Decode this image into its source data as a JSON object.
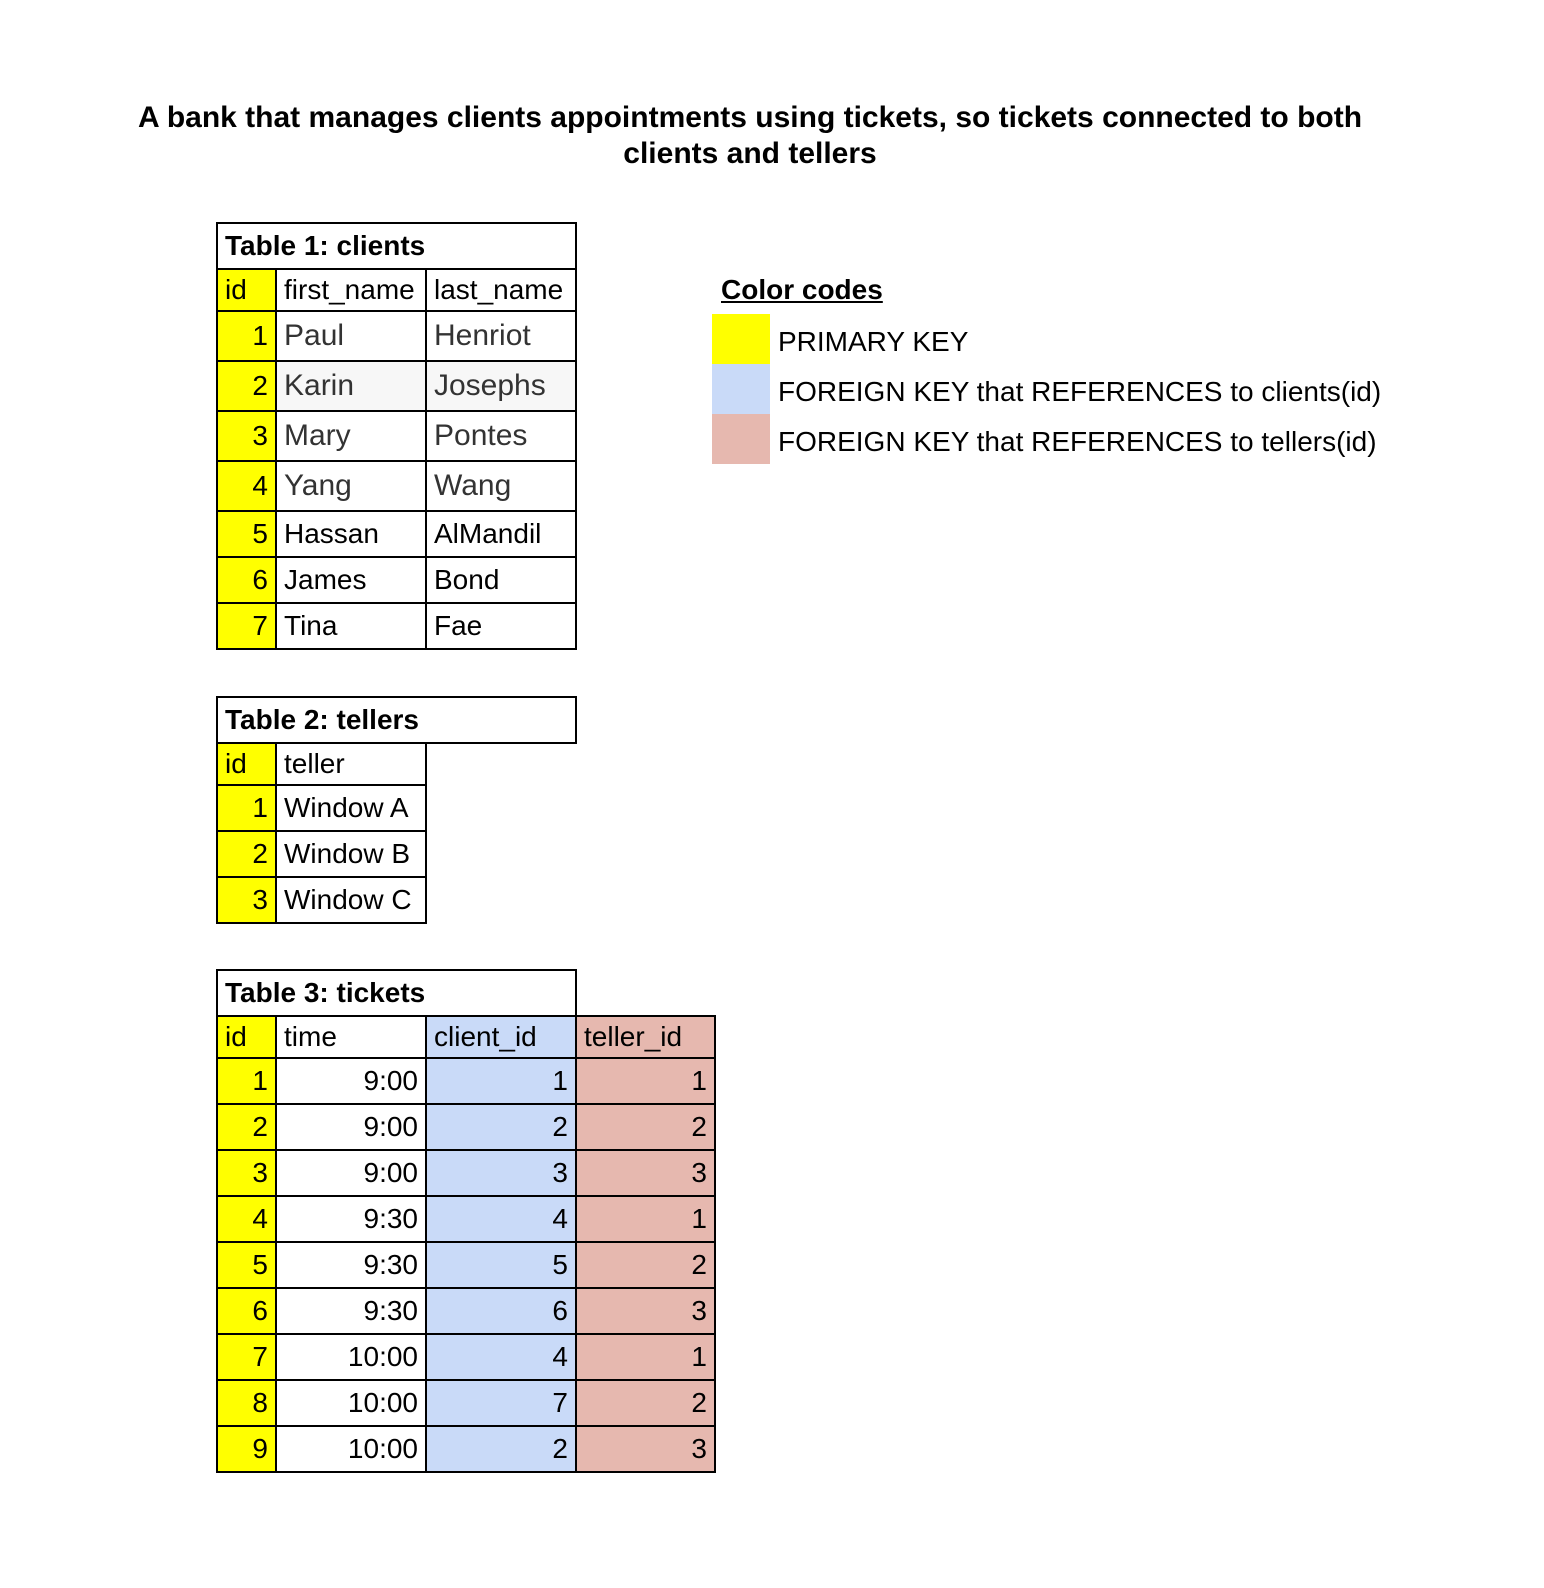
{
  "title": {
    "line1": "A bank that manages clients appointments using tickets, so tickets connected to both",
    "line2": "clients and tellers"
  },
  "colors": {
    "primary_key": "#ffff00",
    "fk_clients": "#c9daf8",
    "fk_tellers": "#e6b8af"
  },
  "clients": {
    "caption": "Table 1: clients",
    "headers": [
      "id",
      "first_name",
      "last_name"
    ],
    "rows": [
      {
        "id": "1",
        "first_name": "Paul",
        "last_name": "Henriot"
      },
      {
        "id": "2",
        "first_name": "Karin",
        "last_name": "Josephs"
      },
      {
        "id": "3",
        "first_name": "Mary",
        "last_name": "Pontes"
      },
      {
        "id": "4",
        "first_name": "Yang",
        "last_name": "Wang"
      },
      {
        "id": "5",
        "first_name": "Hassan",
        "last_name": "AlMandil"
      },
      {
        "id": "6",
        "first_name": "James",
        "last_name": "Bond"
      },
      {
        "id": "7",
        "first_name": "Tina",
        "last_name": "Fae"
      }
    ]
  },
  "tellers": {
    "caption": "Table 2: tellers",
    "headers": [
      "id",
      "teller"
    ],
    "rows": [
      {
        "id": "1",
        "teller": "Window A"
      },
      {
        "id": "2",
        "teller": "Window B"
      },
      {
        "id": "3",
        "teller": "Window C"
      }
    ]
  },
  "tickets": {
    "caption": "Table 3: tickets",
    "headers": [
      "id",
      "time",
      "client_id",
      "teller_id"
    ],
    "rows": [
      {
        "id": "1",
        "time": "9:00",
        "client_id": "1",
        "teller_id": "1"
      },
      {
        "id": "2",
        "time": "9:00",
        "client_id": "2",
        "teller_id": "2"
      },
      {
        "id": "3",
        "time": "9:00",
        "client_id": "3",
        "teller_id": "3"
      },
      {
        "id": "4",
        "time": "9:30",
        "client_id": "4",
        "teller_id": "1"
      },
      {
        "id": "5",
        "time": "9:30",
        "client_id": "5",
        "teller_id": "2"
      },
      {
        "id": "6",
        "time": "9:30",
        "client_id": "6",
        "teller_id": "3"
      },
      {
        "id": "7",
        "time": "10:00",
        "client_id": "4",
        "teller_id": "1"
      },
      {
        "id": "8",
        "time": "10:00",
        "client_id": "7",
        "teller_id": "2"
      },
      {
        "id": "9",
        "time": "10:00",
        "client_id": "2",
        "teller_id": "3"
      }
    ]
  },
  "legend": {
    "title": "Color codes",
    "items": [
      {
        "color": "#ffff00",
        "label": "PRIMARY KEY"
      },
      {
        "color": "#c9daf8",
        "label": "FOREIGN KEY that REFERENCES to clients(id)"
      },
      {
        "color": "#e6b8af",
        "label": "FOREIGN KEY that REFERENCES to tellers(id)"
      }
    ]
  }
}
